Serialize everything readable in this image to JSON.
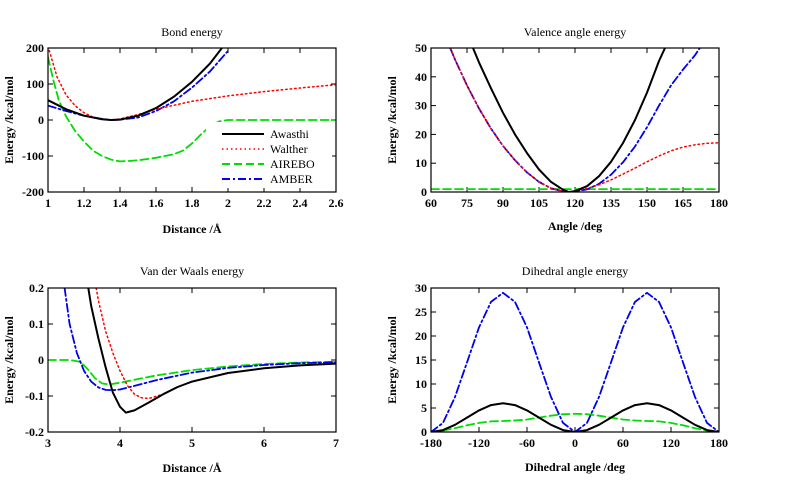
{
  "chart_data": [
    {
      "type": "line",
      "title": "Bond energy",
      "xlabel": "Distance /Å",
      "ylabel": "Energy /kcal/mol",
      "xlim": [
        1,
        2.6
      ],
      "ylim": [
        -200,
        200
      ],
      "xticks": [
        "1",
        "1.2",
        "1.4",
        "1.6",
        "1.8",
        "2",
        "2.2",
        "2.4",
        "2.6"
      ],
      "yticks": [
        "-200",
        "-100",
        "0",
        "100",
        "200"
      ],
      "legend": "bottom-right",
      "series": [
        {
          "name": "Awasthi",
          "color": "#000000",
          "dash": "solid",
          "x": [
            1.0,
            1.1,
            1.2,
            1.3,
            1.35,
            1.4,
            1.5,
            1.6,
            1.7,
            1.8,
            1.9,
            2.0
          ],
          "y": [
            55,
            30,
            12,
            2,
            0,
            1,
            12,
            33,
            65,
            106,
            157,
            222
          ]
        },
        {
          "name": "Walther",
          "color": "#ff0000",
          "dash": "dotted",
          "x": [
            1.0,
            1.05,
            1.1,
            1.15,
            1.2,
            1.25,
            1.3,
            1.35,
            1.4,
            1.5,
            1.6,
            1.8,
            2.0,
            2.2,
            2.4,
            2.6
          ],
          "y": [
            205,
            120,
            70,
            40,
            20,
            8,
            2,
            0,
            3,
            15,
            30,
            52,
            67,
            79,
            89,
            98
          ]
        },
        {
          "name": "AIREBO",
          "color": "#00dd00",
          "dash": "dashed",
          "x": [
            1.0,
            1.03,
            1.06,
            1.1,
            1.15,
            1.2,
            1.25,
            1.3,
            1.35,
            1.4,
            1.45,
            1.5,
            1.6,
            1.7,
            1.75,
            1.8,
            1.85,
            1.9,
            1.95,
            2.0,
            2.6
          ],
          "y": [
            175,
            110,
            55,
            10,
            -30,
            -60,
            -85,
            -100,
            -110,
            -115,
            -114,
            -112,
            -105,
            -95,
            -85,
            -65,
            -40,
            -18,
            -4,
            0,
            0
          ]
        },
        {
          "name": "AMBER",
          "color": "#0000ee",
          "dash": "dashdot",
          "x": [
            1.0,
            1.1,
            1.2,
            1.3,
            1.35,
            1.4,
            1.5,
            1.6,
            1.7,
            1.8,
            1.9,
            2.0
          ],
          "y": [
            40,
            25,
            12,
            3,
            0,
            1,
            7,
            25,
            52,
            90,
            135,
            192
          ]
        }
      ]
    },
    {
      "type": "line",
      "title": "Valence angle energy",
      "xlabel": "Angle /deg",
      "ylabel": "Energy /kcal/mol",
      "xlim": [
        60,
        180
      ],
      "ylim": [
        0,
        50
      ],
      "xticks": [
        "60",
        "75",
        "90",
        "105",
        "120",
        "135",
        "150",
        "165",
        "180"
      ],
      "yticks": [
        "0",
        "10",
        "20",
        "30",
        "40",
        "50"
      ],
      "series": [
        {
          "name": "Awasthi",
          "color": "#000000",
          "dash": "solid",
          "x": [
            77.5,
            80,
            85,
            90,
            95,
            100,
            105,
            110,
            115,
            117.5,
            120,
            125,
            130,
            135,
            140,
            145,
            150,
            155,
            157.5
          ],
          "y": [
            50,
            45,
            36,
            27.5,
            20,
            13.5,
            7.8,
            3.5,
            0.8,
            0,
            0.3,
            2,
            5.5,
            10.5,
            17,
            25,
            34.5,
            45.5,
            50
          ]
        },
        {
          "name": "Walther",
          "color": "#ff0000",
          "dash": "dotted",
          "x": [
            68,
            70,
            75,
            80,
            85,
            90,
            95,
            100,
            105,
            110,
            115,
            117.5,
            120,
            125,
            130,
            135,
            140,
            145,
            150,
            155,
            160,
            165,
            170,
            175,
            180
          ],
          "y": [
            50,
            46,
            37,
            29,
            22,
            16,
            11,
            6.8,
            3.5,
            1.3,
            0.2,
            0,
            0.3,
            1.2,
            2.5,
            4.2,
            6.2,
            8.3,
            10.5,
            12.5,
            14.3,
            15.6,
            16.4,
            16.9,
            17.1
          ]
        },
        {
          "name": "AIREBO",
          "color": "#00dd00",
          "dash": "dashed",
          "x": [
            60,
            180
          ],
          "y": [
            1,
            1
          ]
        },
        {
          "name": "AMBER",
          "color": "#0000ee",
          "dash": "dashdot",
          "x": [
            68,
            70,
            75,
            80,
            85,
            90,
            95,
            100,
            105,
            110,
            115,
            117.5,
            120,
            125,
            130,
            135,
            140,
            145,
            150,
            155,
            160,
            165,
            170,
            172
          ],
          "y": [
            50,
            46,
            37,
            29,
            22,
            16,
            11,
            6.8,
            3.5,
            1.3,
            0.2,
            0,
            0.2,
            0.9,
            2.8,
            6,
            10.3,
            15.8,
            22.5,
            30,
            37,
            42.5,
            47.5,
            50
          ]
        }
      ]
    },
    {
      "type": "line",
      "title": "Van der Waals energy",
      "xlabel": "Distance /Å",
      "ylabel": "Energy /kcal/mol",
      "xlim": [
        3,
        7
      ],
      "ylim": [
        -0.2,
        0.2
      ],
      "xticks": [
        "3",
        "4",
        "5",
        "6",
        "7"
      ],
      "yticks": [
        "-0.2",
        "-0.1",
        "0",
        "0.1",
        "0.2"
      ],
      "series": [
        {
          "name": "Awasthi",
          "color": "#000000",
          "dash": "solid",
          "x": [
            3.56,
            3.6,
            3.7,
            3.8,
            3.9,
            4.0,
            4.08,
            4.2,
            4.4,
            4.6,
            4.8,
            5.0,
            5.5,
            6.0,
            6.5,
            7.0
          ],
          "y": [
            0.2,
            0.15,
            0.06,
            -0.02,
            -0.09,
            -0.13,
            -0.146,
            -0.14,
            -0.118,
            -0.095,
            -0.075,
            -0.06,
            -0.036,
            -0.023,
            -0.015,
            -0.01
          ]
        },
        {
          "name": "Walther",
          "color": "#ff0000",
          "dash": "dotted",
          "x": [
            3.67,
            3.7,
            3.8,
            3.9,
            4.0,
            4.1,
            4.2,
            4.3,
            4.4,
            4.6,
            4.8,
            5.0,
            5.5,
            6.0,
            6.5,
            7.0
          ],
          "y": [
            0.2,
            0.165,
            0.08,
            0.02,
            -0.03,
            -0.07,
            -0.095,
            -0.105,
            -0.107,
            -0.095,
            -0.075,
            -0.06,
            -0.036,
            -0.023,
            -0.015,
            -0.01
          ]
        },
        {
          "name": "AIREBO",
          "color": "#00dd00",
          "dash": "dashed",
          "x": [
            3.0,
            3.3,
            3.45,
            3.55,
            3.65,
            3.75,
            3.85,
            4.0,
            4.2,
            4.5,
            5.0,
            5.5,
            6.0,
            6.5,
            7.0
          ],
          "y": [
            0,
            0,
            -0.005,
            -0.025,
            -0.05,
            -0.065,
            -0.068,
            -0.063,
            -0.055,
            -0.043,
            -0.028,
            -0.018,
            -0.011,
            -0.007,
            -0.005
          ]
        },
        {
          "name": "AMBER",
          "color": "#0000ee",
          "dash": "dashdot",
          "x": [
            3.23,
            3.3,
            3.4,
            3.5,
            3.6,
            3.7,
            3.8,
            3.9,
            4.0,
            4.2,
            4.5,
            5.0,
            5.5,
            6.0,
            6.5,
            7.0
          ],
          "y": [
            0.2,
            0.1,
            0.02,
            -0.03,
            -0.06,
            -0.076,
            -0.083,
            -0.084,
            -0.082,
            -0.072,
            -0.056,
            -0.035,
            -0.022,
            -0.014,
            -0.009,
            -0.006
          ]
        }
      ]
    },
    {
      "type": "line",
      "title": "Dihedral angle energy",
      "xlabel": "Dihedral angle /deg",
      "ylabel": "Energy /kcal/mol",
      "xlim": [
        -180,
        180
      ],
      "ylim": [
        0,
        30
      ],
      "xticks": [
        "-180",
        "-120",
        "-60",
        "0",
        "60",
        "120",
        "180"
      ],
      "yticks": [
        "0",
        "5",
        "10",
        "15",
        "20",
        "25",
        "30"
      ],
      "series": [
        {
          "name": "Awasthi",
          "color": "#000000",
          "dash": "solid",
          "x": [
            -180,
            -165,
            -150,
            -135,
            -120,
            -105,
            -90,
            -75,
            -60,
            -45,
            -30,
            -15,
            0,
            15,
            30,
            45,
            60,
            75,
            90,
            105,
            120,
            135,
            150,
            165,
            180
          ],
          "y": [
            0,
            0.4,
            1.5,
            3.0,
            4.5,
            5.6,
            6.0,
            5.6,
            4.5,
            3.0,
            1.5,
            0.4,
            0,
            0.4,
            1.5,
            3.0,
            4.5,
            5.6,
            6.0,
            5.6,
            4.5,
            3.0,
            1.5,
            0.4,
            0
          ]
        },
        {
          "name": "Walther",
          "color": "#ff0000",
          "dash": "dotted",
          "x": [
            -180,
            -165,
            -150,
            -135,
            -120,
            -105,
            -90,
            -75,
            -60,
            -45,
            -30,
            -15,
            0,
            15,
            30,
            45,
            60,
            75,
            90,
            105,
            120,
            135,
            150,
            165,
            180
          ],
          "y": [
            0,
            0.4,
            1.5,
            3.0,
            4.5,
            5.6,
            6.0,
            5.6,
            4.5,
            3.0,
            1.5,
            0.4,
            0,
            0.4,
            1.5,
            3.0,
            4.5,
            5.6,
            6.0,
            5.6,
            4.5,
            3.0,
            1.5,
            0.4,
            0
          ]
        },
        {
          "name": "AIREBO",
          "color": "#00dd00",
          "dash": "dashed",
          "x": [
            -180,
            -165,
            -150,
            -135,
            -120,
            -105,
            -90,
            -75,
            -60,
            -45,
            -30,
            -15,
            0,
            15,
            30,
            45,
            60,
            75,
            90,
            105,
            120,
            135,
            150,
            165,
            180
          ],
          "y": [
            0,
            0.3,
            0.8,
            1.4,
            1.9,
            2.2,
            2.3,
            2.4,
            2.6,
            3.0,
            3.4,
            3.7,
            3.8,
            3.7,
            3.4,
            3.0,
            2.6,
            2.4,
            2.3,
            2.2,
            1.9,
            1.4,
            0.8,
            0.3,
            0
          ]
        },
        {
          "name": "AMBER",
          "color": "#0000ee",
          "dash": "dashdot",
          "x": [
            -180,
            -165,
            -150,
            -135,
            -120,
            -105,
            -90,
            -75,
            -60,
            -45,
            -30,
            -15,
            0,
            15,
            30,
            45,
            60,
            75,
            90,
            105,
            120,
            135,
            150,
            165,
            180
          ],
          "y": [
            0,
            1.9,
            7.3,
            14.5,
            21.8,
            27.1,
            29.0,
            27.1,
            21.8,
            14.5,
            7.3,
            1.9,
            0,
            1.9,
            7.3,
            14.5,
            21.8,
            27.1,
            29.0,
            27.1,
            21.8,
            14.5,
            7.3,
            1.9,
            0
          ]
        }
      ]
    }
  ]
}
